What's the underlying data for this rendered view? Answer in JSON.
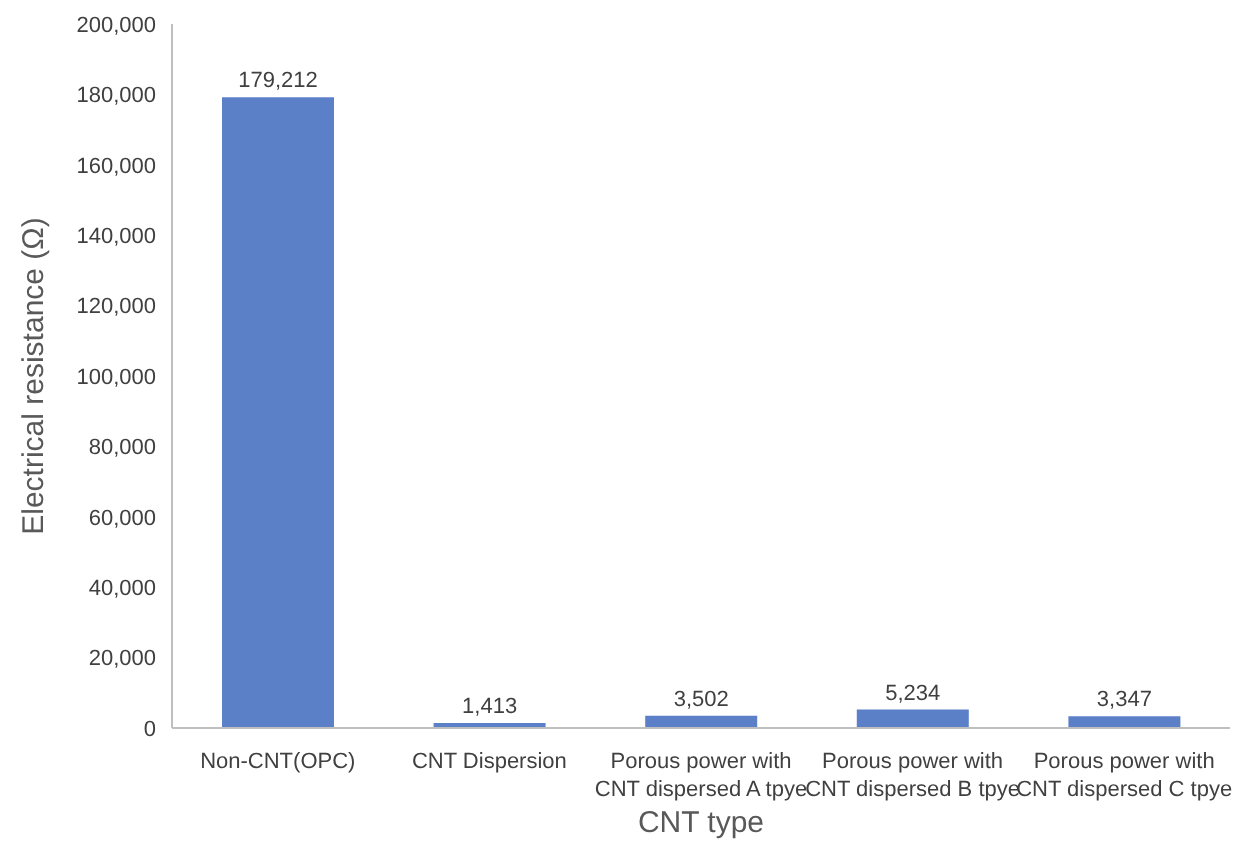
{
  "chart_data": {
    "type": "bar",
    "xlabel": "CNT type",
    "ylabel": "Electrical resistance (Ω)",
    "categories": [
      "Non-CNT(OPC)",
      "CNT Dispersion",
      "Porous power with CNT dispersed A tpye",
      "Porous power with CNT dispersed B tpye",
      "Porous power with CNT dispersed C tpye"
    ],
    "values": [
      179212,
      1413,
      3502,
      5234,
      3347
    ],
    "value_labels": [
      "179,212",
      "1,413",
      "3,502",
      "5,234",
      "3,347"
    ],
    "color": "#5b80c8",
    "ylim": [
      0,
      200000
    ],
    "yticks": [
      0,
      {
        "value": 20000,
        "label": "20,000"
      },
      {
        "value": 40000,
        "label": "40,000"
      },
      {
        "value": 60000,
        "label": "60,000"
      },
      {
        "value": 80000,
        "label": "80,000"
      },
      {
        "value": 100000,
        "label": "100,000"
      },
      {
        "value": 120000,
        "label": "120,000"
      },
      {
        "value": 140000,
        "label": "140,000"
      },
      {
        "value": 160000,
        "label": "160,000"
      },
      {
        "value": 180000,
        "label": "180,000"
      },
      {
        "value": 200000,
        "label": "200,000"
      }
    ],
    "grid": false
  }
}
